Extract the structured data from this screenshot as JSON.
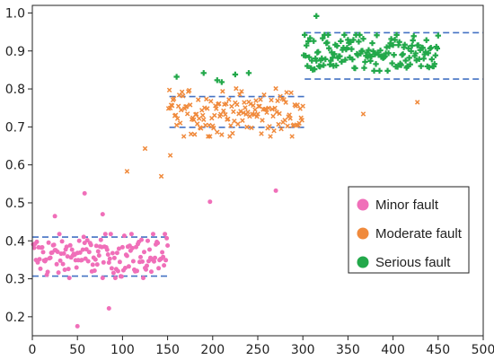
{
  "chart_data": {
    "type": "scatter",
    "xlim": [
      0,
      500
    ],
    "ylim": [
      0.15,
      1.02
    ],
    "xticks": [
      "0",
      "50",
      "100",
      "150",
      "200",
      "250",
      "300",
      "350",
      "400",
      "450",
      "500"
    ],
    "yticks": [
      "0.2",
      "0.3",
      "0.4",
      "0.5",
      "0.6",
      "0.7",
      "0.8",
      "0.9",
      "1.0"
    ],
    "grid": false,
    "legend_position": "lower-right",
    "threshold_lines": [
      {
        "y": 0.41,
        "x_range": [
          0,
          152
        ]
      },
      {
        "y": 0.307,
        "x_range": [
          0,
          152
        ]
      },
      {
        "y": 0.78,
        "x_range": [
          152,
          302
        ]
      },
      {
        "y": 0.699,
        "x_range": [
          152,
          302
        ]
      },
      {
        "y": 0.948,
        "x_range": [
          302,
          500
        ]
      },
      {
        "y": 0.826,
        "x_range": [
          302,
          500
        ]
      }
    ],
    "threshold_line_color": "#4472c4",
    "series": [
      {
        "name": "Minor fault",
        "color": "#f06fb9",
        "marker": "circle",
        "x_range": [
          1,
          150
        ],
        "y_center": 0.36,
        "y_spread": 0.055,
        "n_points": 150,
        "outliers": [
          [
            58,
            0.525
          ],
          [
            197,
            0.503
          ],
          [
            270,
            0.532
          ],
          [
            50,
            0.175
          ],
          [
            85,
            0.222
          ],
          [
            25,
            0.465
          ],
          [
            78,
            0.47
          ]
        ]
      },
      {
        "name": "Moderate fault",
        "color": "#f08a3c",
        "marker": "x",
        "x_range": [
          151,
          300
        ],
        "y_center": 0.738,
        "y_spread": 0.06,
        "n_points": 150,
        "outliers": [
          [
            105,
            0.583
          ],
          [
            143,
            0.57
          ],
          [
            125,
            0.643
          ],
          [
            153,
            0.625
          ],
          [
            367,
            0.734
          ],
          [
            427,
            0.765
          ]
        ]
      },
      {
        "name": "Serious fault",
        "color": "#22a84a",
        "marker": "plus",
        "x_range": [
          301,
          450
        ],
        "y_center": 0.895,
        "y_spread": 0.045,
        "n_points": 150,
        "outliers": [
          [
            160,
            0.832
          ],
          [
            190,
            0.842
          ],
          [
            205,
            0.823
          ],
          [
            210,
            0.818
          ],
          [
            225,
            0.838
          ],
          [
            240,
            0.842
          ],
          [
            315,
            0.992
          ]
        ]
      }
    ]
  }
}
